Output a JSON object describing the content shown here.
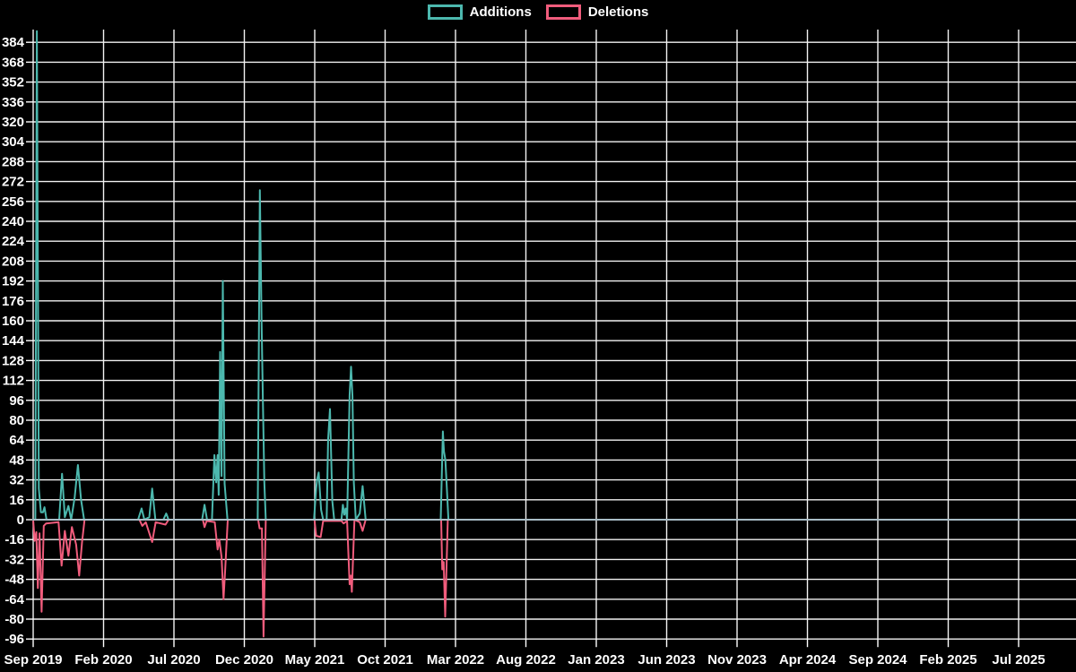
{
  "legend": {
    "items": [
      {
        "label": "Additions",
        "color": "#4cb8ae"
      },
      {
        "label": "Deletions",
        "color": "#f05c7c"
      }
    ]
  },
  "chart_data": {
    "type": "line",
    "title": "",
    "description": "Weekly code additions (positive, teal) and deletions (negative, pink) over time",
    "background_color": "#000000",
    "grid": true,
    "grid_color": "#f2f2f2",
    "zero_baseline_color": "#a9bdc6",
    "text_color": "#ffffff",
    "legend_position": "top-center",
    "x_axis": {
      "start_label": "Sep 2019",
      "tick_interval_months": 5,
      "tick_labels": [
        "Sep 2019",
        "Feb 2020",
        "Jul 2020",
        "Dec 2020",
        "May 2021",
        "Oct 2021",
        "Mar 2022",
        "Aug 2022",
        "Jan 2023",
        "Jun 2023",
        "Nov 2023",
        "Apr 2024",
        "Sep 2024",
        "Feb 2025",
        "Jul 2025"
      ]
    },
    "y_axis": {
      "min": -96,
      "max": 391,
      "tick_step": 16,
      "tick_labels": [
        "384",
        "368",
        "352",
        "336",
        "320",
        "304",
        "288",
        "272",
        "256",
        "240",
        "224",
        "208",
        "192",
        "176",
        "160",
        "144",
        "128",
        "112",
        "96",
        "80",
        "64",
        "48",
        "32",
        "16",
        "0",
        "-16",
        "-32",
        "-48",
        "-64",
        "-80",
        "-96"
      ],
      "tick_values": [
        384,
        368,
        352,
        336,
        320,
        304,
        288,
        272,
        256,
        240,
        224,
        208,
        192,
        176,
        160,
        144,
        128,
        112,
        96,
        80,
        64,
        48,
        32,
        16,
        0,
        -16,
        -32,
        -48,
        -64,
        -80,
        -96
      ]
    },
    "series": [
      {
        "name": "Additions",
        "color": "#4cb8ae",
        "x_unit": "months_since_sep_2019",
        "points": [
          [
            0,
            0
          ],
          [
            0.15,
            0
          ],
          [
            0.26,
            393
          ],
          [
            0.4,
            25
          ],
          [
            0.55,
            6
          ],
          [
            0.7,
            6
          ],
          [
            0.8,
            10
          ],
          [
            0.95,
            0
          ],
          [
            1.85,
            0
          ],
          [
            2.05,
            37
          ],
          [
            2.25,
            2
          ],
          [
            2.5,
            11
          ],
          [
            2.7,
            0
          ],
          [
            2.95,
            18
          ],
          [
            3.18,
            44
          ],
          [
            3.4,
            16
          ],
          [
            3.62,
            0
          ],
          [
            7.45,
            0
          ],
          [
            7.7,
            9
          ],
          [
            7.9,
            0
          ],
          [
            8.25,
            2
          ],
          [
            8.45,
            25
          ],
          [
            8.68,
            0
          ],
          [
            9.25,
            0
          ],
          [
            9.45,
            5
          ],
          [
            9.62,
            0
          ],
          [
            12.0,
            0
          ],
          [
            12.17,
            12
          ],
          [
            12.35,
            0
          ],
          [
            12.7,
            0
          ],
          [
            12.87,
            52
          ],
          [
            13.0,
            30
          ],
          [
            13.1,
            52
          ],
          [
            13.18,
            20
          ],
          [
            13.28,
            135
          ],
          [
            13.38,
            35
          ],
          [
            13.47,
            192
          ],
          [
            13.6,
            29
          ],
          [
            13.8,
            0
          ],
          [
            15.95,
            0
          ],
          [
            16.1,
            265
          ],
          [
            16.22,
            160
          ],
          [
            16.32,
            95
          ],
          [
            16.42,
            30
          ],
          [
            16.52,
            0
          ],
          [
            19.95,
            0
          ],
          [
            20.1,
            25
          ],
          [
            20.18,
            33
          ],
          [
            20.28,
            38
          ],
          [
            20.45,
            8
          ],
          [
            20.6,
            0
          ],
          [
            20.85,
            0
          ],
          [
            20.95,
            64
          ],
          [
            21.08,
            89
          ],
          [
            21.25,
            15
          ],
          [
            21.38,
            0
          ],
          [
            21.9,
            0
          ],
          [
            22.0,
            12
          ],
          [
            22.1,
            4
          ],
          [
            22.2,
            9
          ],
          [
            22.3,
            0
          ],
          [
            22.48,
            100
          ],
          [
            22.58,
            123
          ],
          [
            22.68,
            99
          ],
          [
            22.78,
            30
          ],
          [
            22.92,
            0
          ],
          [
            23.2,
            5
          ],
          [
            23.4,
            27
          ],
          [
            23.62,
            0
          ],
          [
            28.95,
            0
          ],
          [
            29.1,
            71
          ],
          [
            29.18,
            55
          ],
          [
            29.28,
            48
          ],
          [
            29.38,
            26
          ],
          [
            29.5,
            0
          ],
          [
            74.1,
            0
          ]
        ]
      },
      {
        "name": "Deletions",
        "color": "#f05c7c",
        "x_unit": "months_since_sep_2019",
        "points": [
          [
            0,
            0
          ],
          [
            0.1,
            -17
          ],
          [
            0.22,
            -10
          ],
          [
            0.33,
            -55
          ],
          [
            0.45,
            -11
          ],
          [
            0.6,
            -74
          ],
          [
            0.75,
            -5
          ],
          [
            0.92,
            -3
          ],
          [
            1.8,
            -2
          ],
          [
            2.02,
            -37
          ],
          [
            2.25,
            -9
          ],
          [
            2.5,
            -29
          ],
          [
            2.75,
            -6
          ],
          [
            3.05,
            -20
          ],
          [
            3.27,
            -45
          ],
          [
            3.47,
            -18
          ],
          [
            3.65,
            0
          ],
          [
            7.55,
            0
          ],
          [
            7.75,
            -5
          ],
          [
            8.0,
            -2
          ],
          [
            8.45,
            -18
          ],
          [
            8.7,
            -2
          ],
          [
            9.4,
            -4
          ],
          [
            9.62,
            0
          ],
          [
            12.05,
            0
          ],
          [
            12.17,
            -6
          ],
          [
            12.32,
            -1
          ],
          [
            12.9,
            -2
          ],
          [
            13.1,
            -24
          ],
          [
            13.22,
            -16
          ],
          [
            13.38,
            -30
          ],
          [
            13.52,
            -64
          ],
          [
            13.65,
            -38
          ],
          [
            13.82,
            0
          ],
          [
            15.98,
            0
          ],
          [
            16.08,
            -7
          ],
          [
            16.25,
            -7
          ],
          [
            16.36,
            -94
          ],
          [
            16.52,
            0
          ],
          [
            19.98,
            0
          ],
          [
            20.1,
            -13
          ],
          [
            20.42,
            -14
          ],
          [
            20.6,
            -1
          ],
          [
            21.9,
            -1
          ],
          [
            22.05,
            -3
          ],
          [
            22.3,
            -1
          ],
          [
            22.48,
            -52
          ],
          [
            22.56,
            -45
          ],
          [
            22.64,
            -58
          ],
          [
            22.82,
            0
          ],
          [
            23.2,
            -2
          ],
          [
            23.4,
            -9
          ],
          [
            23.62,
            0
          ],
          [
            28.98,
            0
          ],
          [
            29.06,
            -40
          ],
          [
            29.16,
            -34
          ],
          [
            29.27,
            -78
          ],
          [
            29.45,
            0
          ],
          [
            74.1,
            0
          ]
        ]
      }
    ]
  }
}
